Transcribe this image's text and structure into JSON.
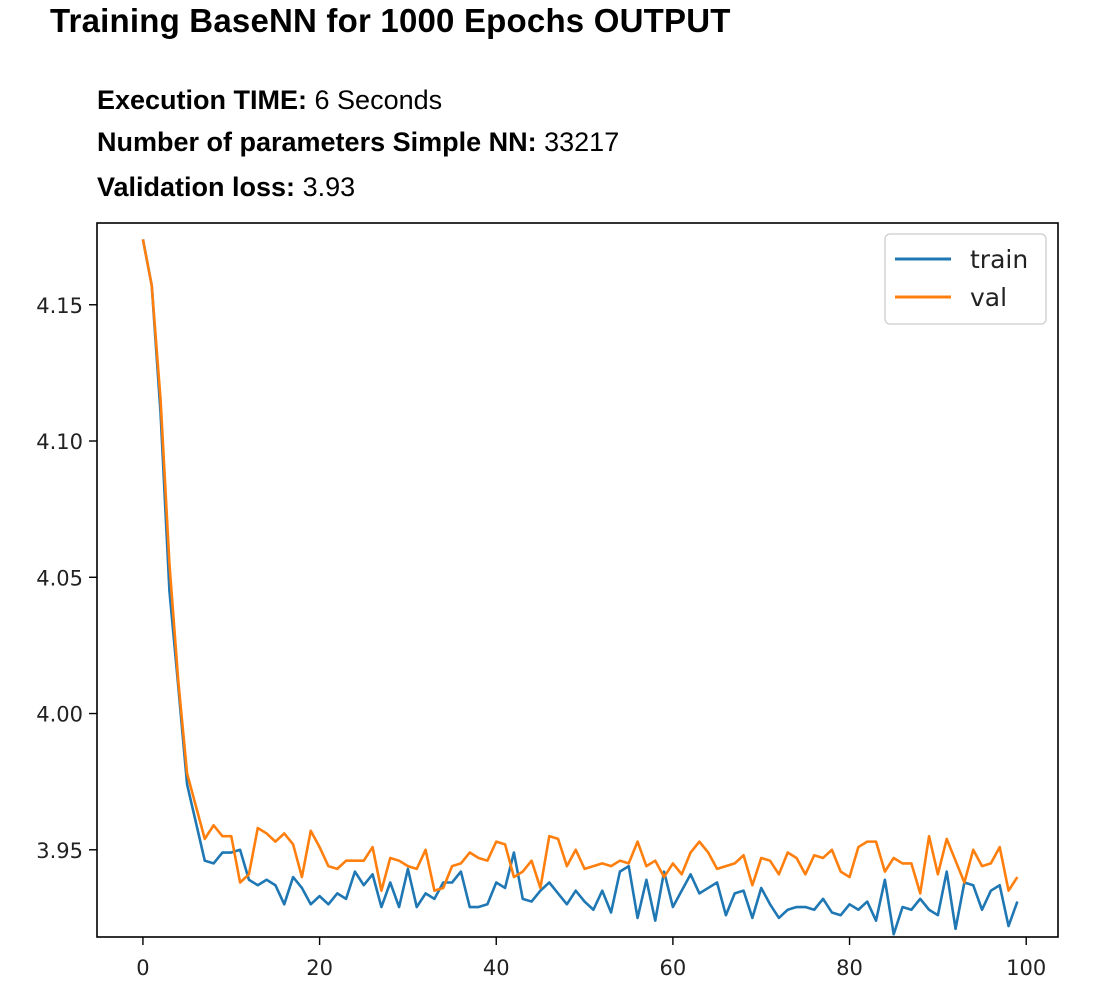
{
  "page": {
    "title": "Training BaseNN for 1000 Epochs OUTPUT",
    "execution_time": {
      "label": "Execution TIME:",
      "value": "6 Seconds"
    },
    "num_params": {
      "label": "Number of parameters Simple NN:",
      "value": "33217"
    },
    "val_loss": {
      "label": "Validation loss:",
      "value": "3.93"
    }
  },
  "chart_data": {
    "type": "line",
    "title": "",
    "xlabel": "",
    "ylabel": "",
    "xlim": [
      -5.2,
      103.6
    ],
    "ylim": [
      3.918,
      4.18
    ],
    "xticks": [
      0,
      20,
      40,
      60,
      80,
      100
    ],
    "yticks": [
      3.95,
      4.0,
      4.05,
      4.1,
      4.15
    ],
    "ytick_labels": [
      "3.95",
      "4.00",
      "4.05",
      "4.10",
      "4.15"
    ],
    "legend_position": "upper right",
    "x": [
      0,
      1,
      2,
      3,
      4,
      5,
      6,
      7,
      8,
      9,
      10,
      11,
      12,
      13,
      14,
      15,
      16,
      17,
      18,
      19,
      20,
      21,
      22,
      23,
      24,
      25,
      26,
      27,
      28,
      29,
      30,
      31,
      32,
      33,
      34,
      35,
      36,
      37,
      38,
      39,
      40,
      41,
      42,
      43,
      44,
      45,
      46,
      47,
      48,
      49,
      50,
      51,
      52,
      53,
      54,
      55,
      56,
      57,
      58,
      59,
      60,
      61,
      62,
      63,
      64,
      65,
      66,
      67,
      68,
      69,
      70,
      71,
      72,
      73,
      74,
      75,
      76,
      77,
      78,
      79,
      80,
      81,
      82,
      83,
      84,
      85,
      86,
      87,
      88,
      89,
      90,
      91,
      92,
      93,
      94,
      95,
      96,
      97,
      98,
      99
    ],
    "series": [
      {
        "name": "train",
        "color": "#1f77b4",
        "values": [
          4.174,
          4.157,
          4.11,
          4.045,
          4.01,
          3.974,
          3.96,
          3.946,
          3.945,
          3.949,
          3.949,
          3.95,
          3.939,
          3.937,
          3.939,
          3.937,
          3.93,
          3.94,
          3.936,
          3.93,
          3.933,
          3.93,
          3.934,
          3.932,
          3.942,
          3.937,
          3.941,
          3.929,
          3.938,
          3.929,
          3.943,
          3.929,
          3.934,
          3.932,
          3.938,
          3.938,
          3.942,
          3.929,
          3.929,
          3.93,
          3.938,
          3.936,
          3.949,
          3.932,
          3.931,
          3.935,
          3.938,
          3.934,
          3.93,
          3.935,
          3.931,
          3.928,
          3.935,
          3.927,
          3.942,
          3.944,
          3.925,
          3.939,
          3.924,
          3.942,
          3.929,
          3.935,
          3.941,
          3.934,
          3.936,
          3.938,
          3.926,
          3.934,
          3.935,
          3.925,
          3.936,
          3.93,
          3.925,
          3.928,
          3.929,
          3.929,
          3.928,
          3.932,
          3.927,
          3.926,
          3.93,
          3.928,
          3.931,
          3.924,
          3.939,
          3.919,
          3.929,
          3.928,
          3.932,
          3.928,
          3.926,
          3.942,
          3.921,
          3.938,
          3.937,
          3.928,
          3.935,
          3.937,
          3.922,
          3.931
        ]
      },
      {
        "name": "val",
        "color": "#ff7f0e",
        "values": [
          4.174,
          4.157,
          4.115,
          4.055,
          4.012,
          3.978,
          3.966,
          3.954,
          3.959,
          3.955,
          3.955,
          3.938,
          3.941,
          3.958,
          3.956,
          3.953,
          3.956,
          3.952,
          3.94,
          3.957,
          3.951,
          3.944,
          3.943,
          3.946,
          3.946,
          3.946,
          3.951,
          3.935,
          3.947,
          3.946,
          3.944,
          3.943,
          3.95,
          3.935,
          3.936,
          3.944,
          3.945,
          3.949,
          3.947,
          3.946,
          3.953,
          3.952,
          3.94,
          3.942,
          3.946,
          3.936,
          3.955,
          3.954,
          3.944,
          3.95,
          3.943,
          3.944,
          3.945,
          3.944,
          3.946,
          3.945,
          3.953,
          3.944,
          3.946,
          3.94,
          3.945,
          3.941,
          3.949,
          3.953,
          3.949,
          3.943,
          3.944,
          3.945,
          3.948,
          3.937,
          3.947,
          3.946,
          3.941,
          3.949,
          3.947,
          3.941,
          3.948,
          3.947,
          3.95,
          3.942,
          3.94,
          3.951,
          3.953,
          3.953,
          3.942,
          3.947,
          3.945,
          3.945,
          3.934,
          3.955,
          3.941,
          3.954,
          3.946,
          3.938,
          3.95,
          3.944,
          3.945,
          3.951,
          3.935,
          3.94
        ]
      }
    ]
  }
}
